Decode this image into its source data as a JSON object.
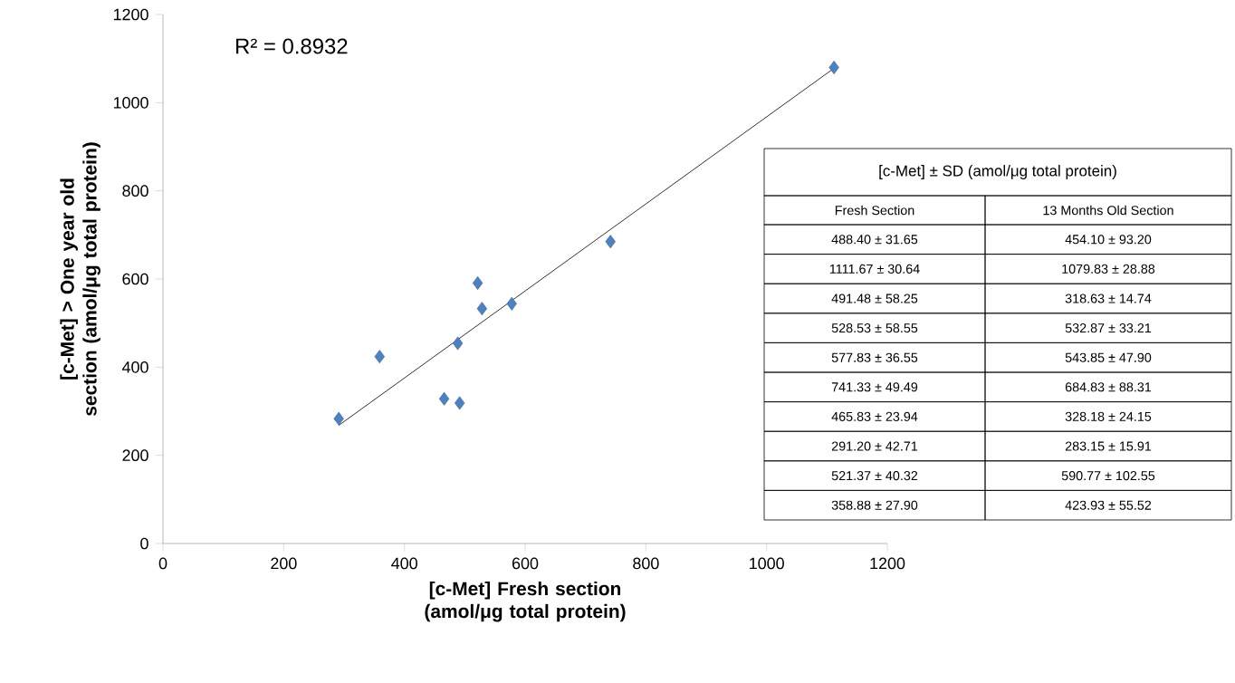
{
  "chart_data": {
    "type": "scatter",
    "xlabel": "[c-Met] Fresh section (amol/μg total protein)",
    "ylabel": "[c-Met] > One year old section (amol/μg total protein)",
    "xlim": [
      0,
      1200
    ],
    "ylim": [
      0,
      1200
    ],
    "xticks": [
      0,
      200,
      400,
      600,
      800,
      1000,
      1200
    ],
    "yticks": [
      0,
      200,
      400,
      600,
      800,
      1000,
      1200
    ],
    "grid": false,
    "series": [
      {
        "color": "#4f81bd",
        "marker": "diamond",
        "x": [
          488.4,
          1111.67,
          491.48,
          528.53,
          577.83,
          741.33,
          465.83,
          291.2,
          521.37,
          358.88
        ],
        "values": [
          454.1,
          1079.83,
          318.63,
          532.87,
          543.85,
          684.83,
          328.18,
          283.15,
          590.77,
          423.93
        ]
      },
      {
        "type": "line",
        "color": "#000000",
        "marker": "none",
        "x": [
          291.2,
          1111.67
        ],
        "values": [
          268,
          1078
        ]
      }
    ],
    "annotations": [
      "R² = 0.8932",
      "[c-Met] ± SD (amol/μg total protein)",
      "Fresh Section",
      "13 Months Old Section",
      "488.40 ± 31.65",
      "454.10 ± 93.20",
      "1111.67 ± 30.64",
      "1079.83 ± 28.88",
      "491.48 ± 58.25",
      "318.63 ± 14.74",
      "528.53 ± 58.55",
      "532.87 ± 33.21",
      "577.83 ± 36.55",
      "543.85 ± 47.90",
      "741.33 ± 49.49",
      "684.83 ± 88.31",
      "465.83 ± 23.94",
      "328.18 ± 24.15",
      "291.20 ± 42.71",
      "283.15 ± 15.91",
      "521.37 ± 40.32",
      "590.77 ± 102.55",
      "358.88 ± 27.90",
      "423.93 ± 55.52"
    ]
  }
}
